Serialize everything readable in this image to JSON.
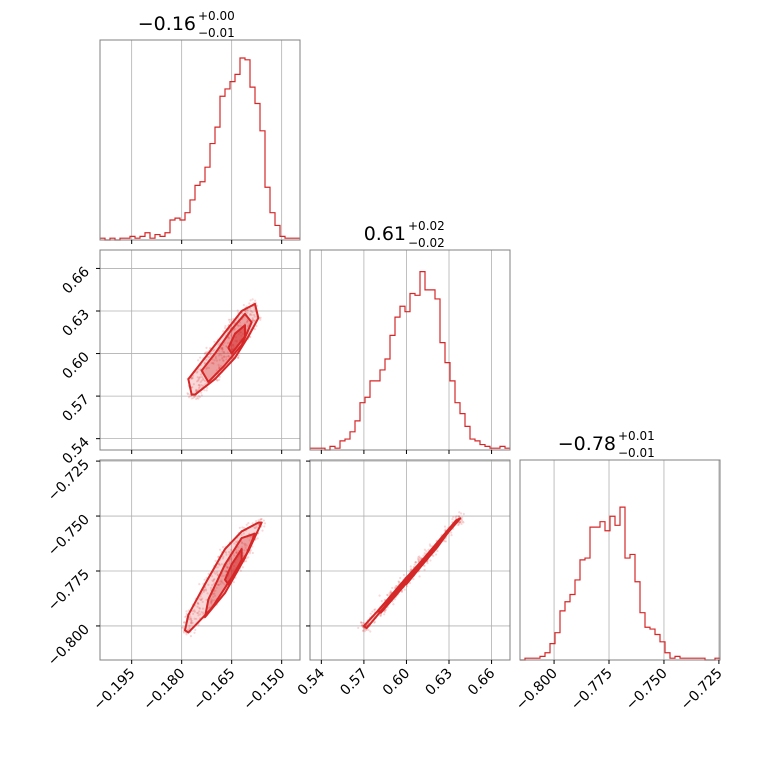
{
  "chart_data": {
    "type": "corner",
    "color": "#d62728",
    "grid": true,
    "parameters": [
      {
        "id": "p1",
        "range": [
          -0.2045,
          -0.1445
        ],
        "ticks": [
          -0.195,
          -0.18,
          -0.165,
          -0.15
        ],
        "tick_labels": [
          "−0.195",
          "−0.180",
          "−0.165",
          "−0.150"
        ],
        "title": {
          "main": "−0.16",
          "plus": "+0.00",
          "minus": "−0.01"
        }
      },
      {
        "id": "p2",
        "range": [
          0.532,
          0.673
        ],
        "ticks": [
          0.54,
          0.57,
          0.6,
          0.63,
          0.66
        ],
        "tick_labels": [
          "0.54",
          "0.57",
          "0.60",
          "0.63",
          "0.66"
        ],
        "title": {
          "main": "0.61",
          "plus": "+0.02",
          "minus": "−0.02"
        }
      },
      {
        "id": "p3",
        "range": [
          -0.8155,
          -0.7245
        ],
        "ticks": [
          -0.8,
          -0.775,
          -0.75,
          -0.725
        ],
        "tick_labels": [
          "−0.800",
          "−0.775",
          "−0.750",
          "−0.725"
        ],
        "title": {
          "main": "−0.78",
          "plus": "+0.01",
          "minus": "−0.01"
        }
      }
    ],
    "histograms": [
      {
        "param": "p1",
        "ymax": 1.0,
        "counts": [
          0.01,
          0.0,
          0.01,
          0.0,
          0.01,
          0.01,
          0.02,
          0.01,
          0.02,
          0.04,
          0.01,
          0.03,
          0.02,
          0.04,
          0.11,
          0.12,
          0.11,
          0.15,
          0.22,
          0.3,
          0.32,
          0.4,
          0.53,
          0.62,
          0.79,
          0.83,
          0.87,
          0.91,
          1.0,
          0.99,
          0.84,
          0.75,
          0.6,
          0.29,
          0.15,
          0.08,
          0.02,
          0.01,
          0.01,
          0.01
        ]
      },
      {
        "param": "p2",
        "ymax": 1.0,
        "counts": [
          0.01,
          0.01,
          0.01,
          0.0,
          0.02,
          0.01,
          0.05,
          0.06,
          0.1,
          0.16,
          0.26,
          0.29,
          0.38,
          0.38,
          0.44,
          0.5,
          0.63,
          0.73,
          0.79,
          0.76,
          0.86,
          0.85,
          0.98,
          0.88,
          0.88,
          0.83,
          0.59,
          0.48,
          0.38,
          0.26,
          0.2,
          0.13,
          0.06,
          0.05,
          0.03,
          0.02,
          0.01,
          0.01,
          0.02,
          0.01
        ]
      },
      {
        "param": "p3",
        "ymax": 1.0,
        "counts": [
          0.0,
          0.01,
          0.01,
          0.01,
          0.02,
          0.04,
          0.09,
          0.15,
          0.27,
          0.32,
          0.36,
          0.44,
          0.55,
          0.56,
          0.73,
          0.73,
          0.76,
          0.71,
          0.79,
          0.74,
          0.84,
          0.56,
          0.58,
          0.43,
          0.26,
          0.18,
          0.17,
          0.14,
          0.1,
          0.04,
          0.01,
          0.02,
          0.01,
          0.01,
          0.01,
          0.01,
          0.01,
          0.0,
          0.0,
          0.01
        ]
      }
    ],
    "scatter_2d": [
      {
        "x": "p1",
        "y": "p2",
        "core": [
          [
            -0.176,
            0.571
          ],
          [
            -0.17,
            0.582
          ],
          [
            -0.164,
            0.597
          ],
          [
            -0.16,
            0.612
          ],
          [
            -0.157,
            0.625
          ],
          [
            -0.158,
            0.635
          ],
          [
            -0.162,
            0.63
          ],
          [
            -0.166,
            0.618
          ],
          [
            -0.172,
            0.6
          ],
          [
            -0.178,
            0.582
          ],
          [
            -0.177,
            0.571
          ]
        ],
        "mid": [
          [
            -0.172,
            0.58
          ],
          [
            -0.167,
            0.592
          ],
          [
            -0.162,
            0.606
          ],
          [
            -0.159,
            0.622
          ],
          [
            -0.161,
            0.628
          ],
          [
            -0.165,
            0.617
          ],
          [
            -0.17,
            0.6
          ],
          [
            -0.174,
            0.588
          ]
        ],
        "inner": [
          [
            -0.165,
            0.6
          ],
          [
            -0.161,
            0.612
          ],
          [
            -0.161,
            0.62
          ],
          [
            -0.164,
            0.614
          ],
          [
            -0.166,
            0.604
          ]
        ]
      },
      {
        "x": "p1",
        "y": "p3",
        "core": [
          [
            -0.178,
            -0.803
          ],
          [
            -0.171,
            -0.792
          ],
          [
            -0.165,
            -0.778
          ],
          [
            -0.16,
            -0.766
          ],
          [
            -0.156,
            -0.753
          ],
          [
            -0.157,
            -0.753
          ],
          [
            -0.162,
            -0.757
          ],
          [
            -0.167,
            -0.765
          ],
          [
            -0.173,
            -0.781
          ],
          [
            -0.178,
            -0.795
          ],
          [
            -0.179,
            -0.802
          ]
        ],
        "mid": [
          [
            -0.173,
            -0.796
          ],
          [
            -0.167,
            -0.785
          ],
          [
            -0.161,
            -0.769
          ],
          [
            -0.158,
            -0.758
          ],
          [
            -0.162,
            -0.76
          ],
          [
            -0.167,
            -0.772
          ],
          [
            -0.172,
            -0.788
          ]
        ],
        "inner": [
          [
            -0.166,
            -0.781
          ],
          [
            -0.162,
            -0.77
          ],
          [
            -0.162,
            -0.765
          ],
          [
            -0.165,
            -0.772
          ],
          [
            -0.167,
            -0.779
          ]
        ]
      },
      {
        "x": "p2",
        "y": "p3",
        "core": [
          [
            0.57,
            -0.8
          ],
          [
            0.59,
            -0.786
          ],
          [
            0.61,
            -0.771
          ],
          [
            0.635,
            -0.752
          ],
          [
            0.638,
            -0.751
          ],
          [
            0.614,
            -0.769
          ],
          [
            0.594,
            -0.784
          ],
          [
            0.572,
            -0.801
          ]
        ],
        "mid": [
          [
            0.58,
            -0.793
          ],
          [
            0.6,
            -0.778
          ],
          [
            0.62,
            -0.764
          ],
          [
            0.632,
            -0.755
          ],
          [
            0.622,
            -0.764
          ],
          [
            0.602,
            -0.779
          ],
          [
            0.582,
            -0.794
          ]
        ],
        "inner": [
          [
            0.598,
            -0.78
          ],
          [
            0.612,
            -0.77
          ],
          [
            0.622,
            -0.763
          ],
          [
            0.614,
            -0.77
          ],
          [
            0.6,
            -0.781
          ]
        ]
      }
    ]
  }
}
